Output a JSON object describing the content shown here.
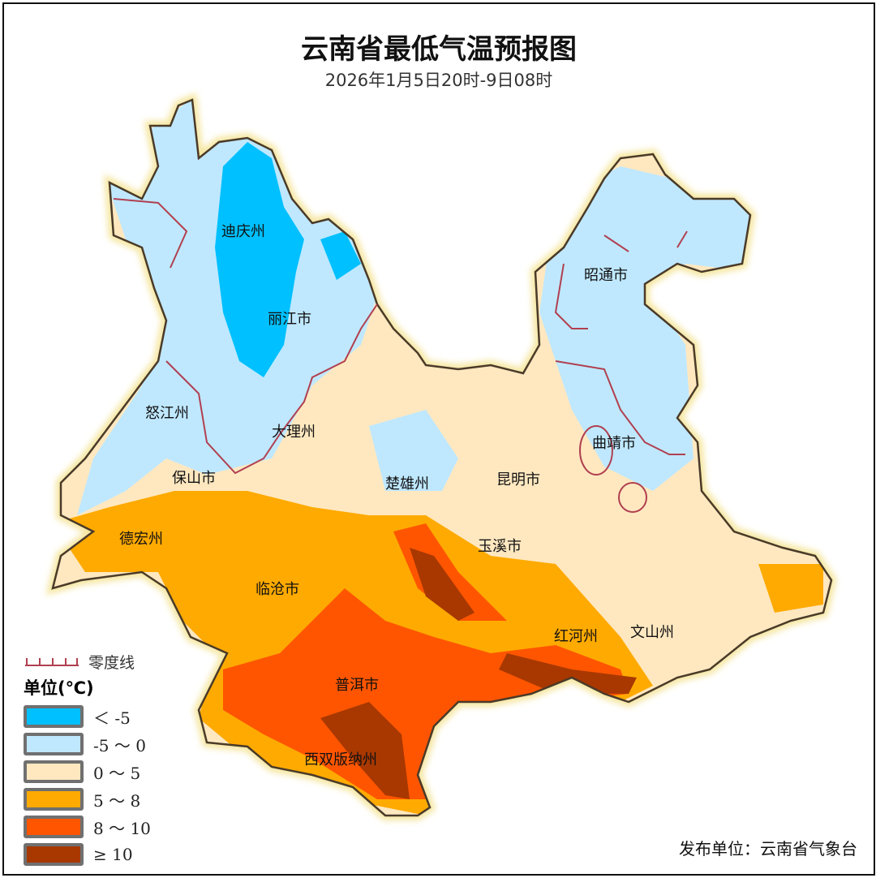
{
  "title": "云南省最低气温预报图",
  "subtitle": "2026年1月5日20时-9日08时",
  "regions": [
    "迪庆州",
    "丽江市",
    "怒江州",
    "大理州",
    "保山市",
    "德宏州",
    "临沧市",
    "楚雄州",
    "昆明市",
    "玉溪市",
    "红河州",
    "文山州",
    "普洱市",
    "西双版纳州",
    "昭通市",
    "曲靖市"
  ],
  "legend": {
    "zero_line": "零度线",
    "zero_line_color": "#b04050",
    "unit": "单位(℃)",
    "items": [
      {
        "label": "＜ -5",
        "color": "#00c0ff"
      },
      {
        "label": "-5 ～ 0",
        "color": "#bfe8ff"
      },
      {
        "label": "0 ～ 5",
        "color": "#ffe8c0"
      },
      {
        "label": "5 ～ 8",
        "color": "#ffaa00"
      },
      {
        "label": "8 ～ 10",
        "color": "#ff5500"
      },
      {
        "label": "≥ 10",
        "color": "#a83800"
      }
    ]
  },
  "publisher": "发布单位：云南省气象台"
}
